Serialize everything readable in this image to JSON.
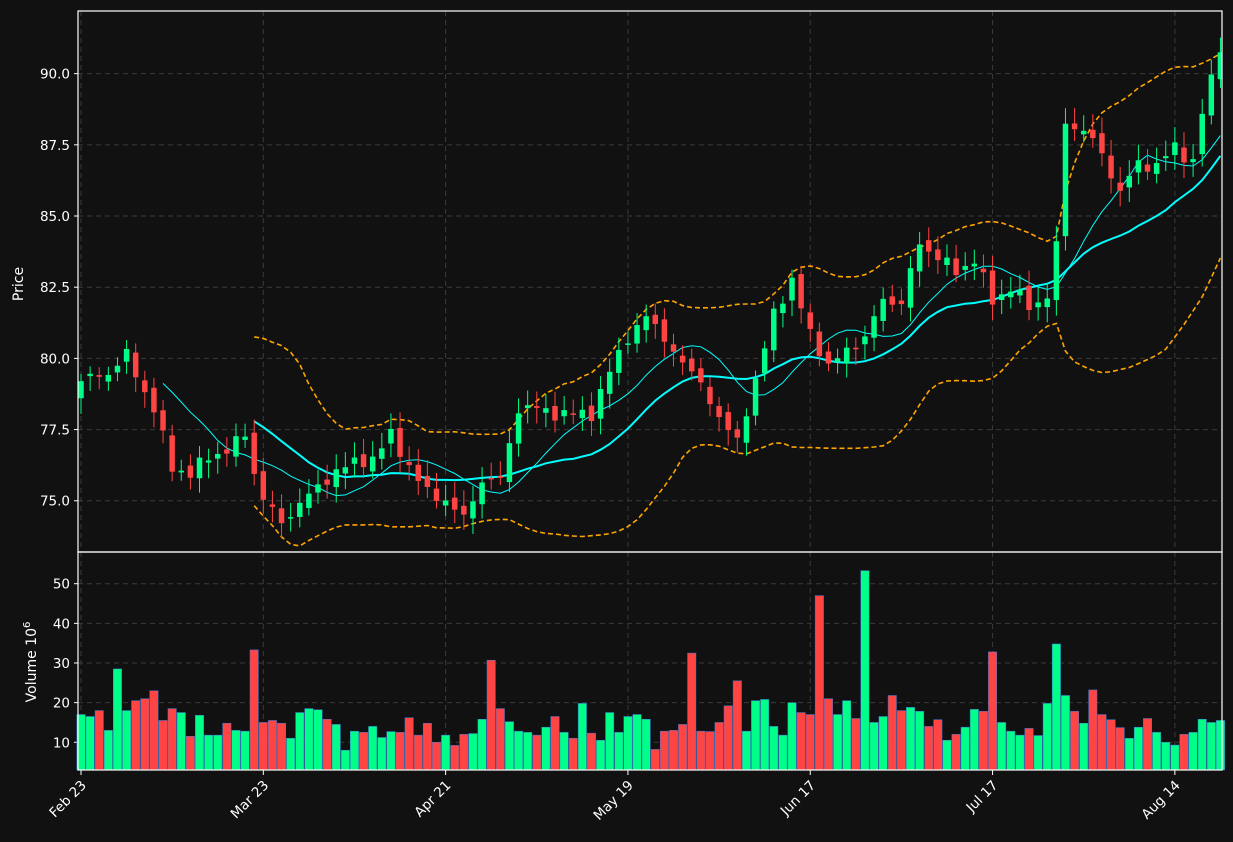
{
  "colors": {
    "background": "#111111",
    "up": "#00ff88",
    "down": "#ff4444",
    "ma_fast": "#00ffff",
    "ma_slow": "#00ffff",
    "bollinger": "#ffa500",
    "axis": "#ffffff",
    "grid": "#3a3a3a"
  },
  "chart_data": {
    "type": "candlestick",
    "title": "",
    "price_ylabel": "Price",
    "volume_ylabel": "Volume",
    "volume_multiplier_text": "10",
    "volume_multiplier_exp": "6",
    "price_ylim": [
      73.2,
      92.2
    ],
    "volume_ylim": [
      3,
      58
    ],
    "price_yticks": [
      "75.0",
      "77.5",
      "80.0",
      "82.5",
      "85.0",
      "87.5",
      "90.0"
    ],
    "volume_yticks": [
      "10",
      "20",
      "30",
      "40",
      "50"
    ],
    "x_ticks": [
      {
        "index": 0,
        "label": "Feb 23"
      },
      {
        "index": 20,
        "label": "Mar 23"
      },
      {
        "index": 40,
        "label": "Apr 21"
      },
      {
        "index": 60,
        "label": "May 19"
      },
      {
        "index": 80,
        "label": "Jun 17"
      },
      {
        "index": 100,
        "label": "Jul 17"
      },
      {
        "index": 120,
        "label": "Aug 14"
      }
    ],
    "grid": true,
    "num_bars": 126,
    "indicators": {
      "moving_averages": [
        "fast MA (thin cyan)",
        "slow MA (thick cyan)"
      ],
      "bollinger_bands": "orange dashed upper/middle/lower"
    },
    "price_anchors": [
      [
        0,
        79.2
      ],
      [
        3,
        79.5
      ],
      [
        5,
        80.1
      ],
      [
        8,
        78.2
      ],
      [
        10,
        76.2
      ],
      [
        12,
        75.9
      ],
      [
        14,
        76.6
      ],
      [
        16,
        76.7
      ],
      [
        18,
        77.4
      ],
      [
        19,
        76.0
      ],
      [
        20,
        75.0
      ],
      [
        22,
        74.3
      ],
      [
        24,
        74.8
      ],
      [
        26,
        75.6
      ],
      [
        28,
        75.9
      ],
      [
        30,
        76.5
      ],
      [
        32,
        76.3
      ],
      [
        34,
        77.5
      ],
      [
        36,
        76.0
      ],
      [
        38,
        75.5
      ],
      [
        40,
        74.8
      ],
      [
        42,
        74.6
      ],
      [
        44,
        75.5
      ],
      [
        46,
        76.0
      ],
      [
        48,
        78.0
      ],
      [
        50,
        78.5
      ],
      [
        52,
        77.8
      ],
      [
        54,
        78.3
      ],
      [
        56,
        77.8
      ],
      [
        58,
        79.8
      ],
      [
        60,
        80.5
      ],
      [
        62,
        81.7
      ],
      [
        64,
        80.5
      ],
      [
        66,
        80.0
      ],
      [
        68,
        79.0
      ],
      [
        70,
        78.0
      ],
      [
        72,
        77.0
      ],
      [
        74,
        79.3
      ],
      [
        76,
        81.5
      ],
      [
        78,
        82.8
      ],
      [
        80,
        80.8
      ],
      [
        82,
        79.8
      ],
      [
        84,
        80.2
      ],
      [
        86,
        80.8
      ],
      [
        88,
        82.0
      ],
      [
        90,
        82.0
      ],
      [
        92,
        84.0
      ],
      [
        94,
        83.6
      ],
      [
        96,
        83.0
      ],
      [
        98,
        83.5
      ],
      [
        100,
        82.0
      ],
      [
        102,
        82.5
      ],
      [
        104,
        81.8
      ],
      [
        106,
        82.2
      ],
      [
        107,
        83.9
      ],
      [
        108,
        88.3
      ],
      [
        110,
        88.0
      ],
      [
        112,
        87.2
      ],
      [
        114,
        85.8
      ],
      [
        116,
        86.9
      ],
      [
        118,
        86.7
      ],
      [
        120,
        87.5
      ],
      [
        122,
        86.8
      ],
      [
        123,
        88.6
      ],
      [
        124,
        89.9
      ],
      [
        125,
        91.0
      ]
    ],
    "volume_values": [
      17,
      16.5,
      18,
      13,
      28.5,
      18,
      20.5,
      21,
      23,
      15.5,
      18.5,
      17.5,
      11.5,
      16.8,
      11.8,
      11.8,
      14.8,
      13,
      12.8,
      33.3,
      15,
      15.5,
      14.8,
      11,
      17.5,
      18.5,
      18.2,
      15.8,
      14.5,
      8,
      12.8,
      12.5,
      14,
      11.2,
      12.7,
      12.5,
      16.2,
      11.8,
      14.8,
      10,
      11.8,
      9.2,
      12,
      12.2,
      15.8,
      30.7,
      18.5,
      15.2,
      12.8,
      12.5,
      11.8,
      13.8,
      16.5,
      12.5,
      11,
      19.8,
      12.3,
      10.5,
      17.5,
      12.5,
      16.5,
      17,
      15.8,
      8.2,
      12.8,
      13,
      14.5,
      32.5,
      12.8,
      12.7,
      15,
      19.2,
      25.5,
      12.8,
      20.5,
      20.8,
      14,
      11.8,
      20,
      17.5,
      17,
      47,
      21,
      17,
      20.5,
      16,
      53.3,
      15,
      16.5,
      21.8,
      18,
      18.8,
      17.8,
      14,
      15.7,
      10.5,
      12,
      13.8,
      18.3,
      17.8,
      32.8,
      15,
      12.8,
      11.8,
      13.5,
      11.7,
      19.8,
      34.8,
      21.8,
      17.8,
      14.8,
      23.2,
      17,
      15.7,
      13.7,
      11,
      13.8,
      16,
      12.5,
      10,
      9.3,
      12,
      12.5,
      15.8,
      15,
      15.5
    ]
  }
}
